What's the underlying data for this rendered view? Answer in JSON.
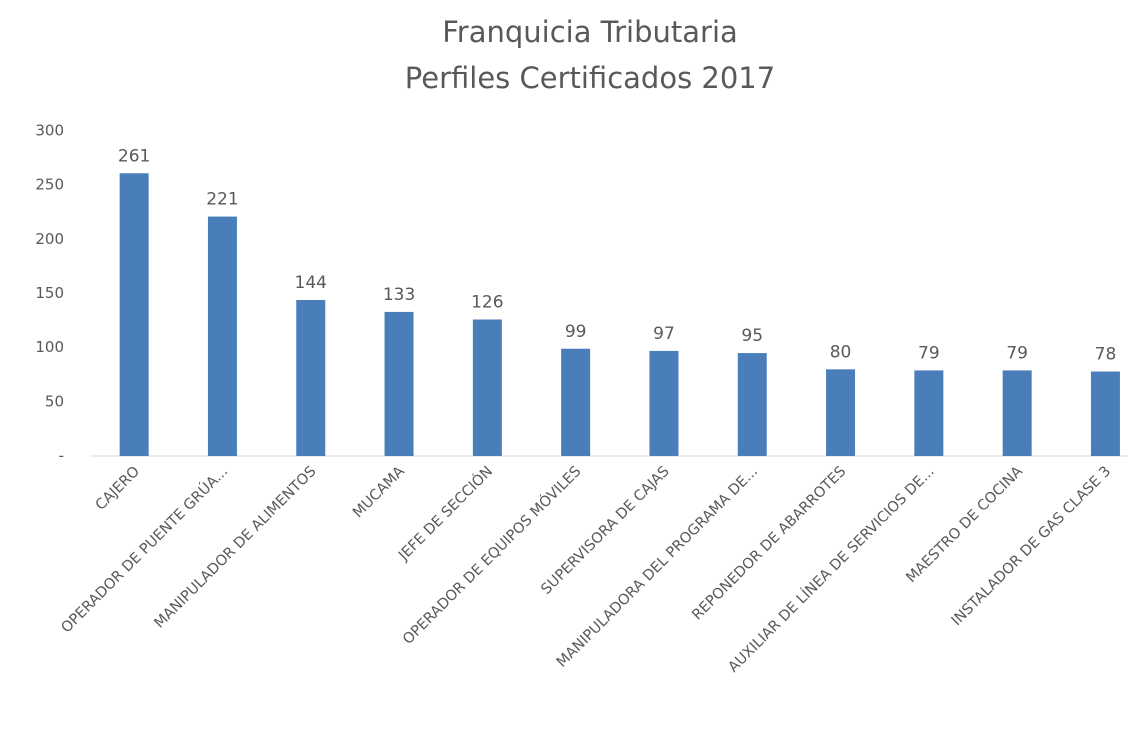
{
  "chart_data": {
    "type": "bar",
    "title": [
      "Franquicia Tributaria",
      "Perfiles Certificados 2017"
    ],
    "categories": [
      "CAJERO",
      "OPERADOR DE PUENTE GRÚA...",
      "MANIPULADOR DE ALIMENTOS",
      "MUCAMA",
      "JEFE DE SECCIÓN",
      "OPERADOR DE EQUIPOS MÓVILES",
      "SUPERVISORA DE CAJAS",
      "MANIPULADORA DEL PROGRAMA DE...",
      "REPONEDOR DE ABARROTES",
      "AUXILIAR DE LÍNEA DE SERVICIOS DE...",
      "MAESTRO DE COCINA",
      "INSTALADOR DE GAS CLASE 3"
    ],
    "values": [
      261,
      221,
      144,
      133,
      126,
      99,
      97,
      95,
      80,
      79,
      79,
      78
    ],
    "color": "#4a7ebb",
    "ylim": [
      0,
      300
    ],
    "yticks": [
      {
        "value": 0,
        "label": "-"
      },
      50,
      100,
      150,
      200,
      250,
      300
    ],
    "grid": false
  }
}
